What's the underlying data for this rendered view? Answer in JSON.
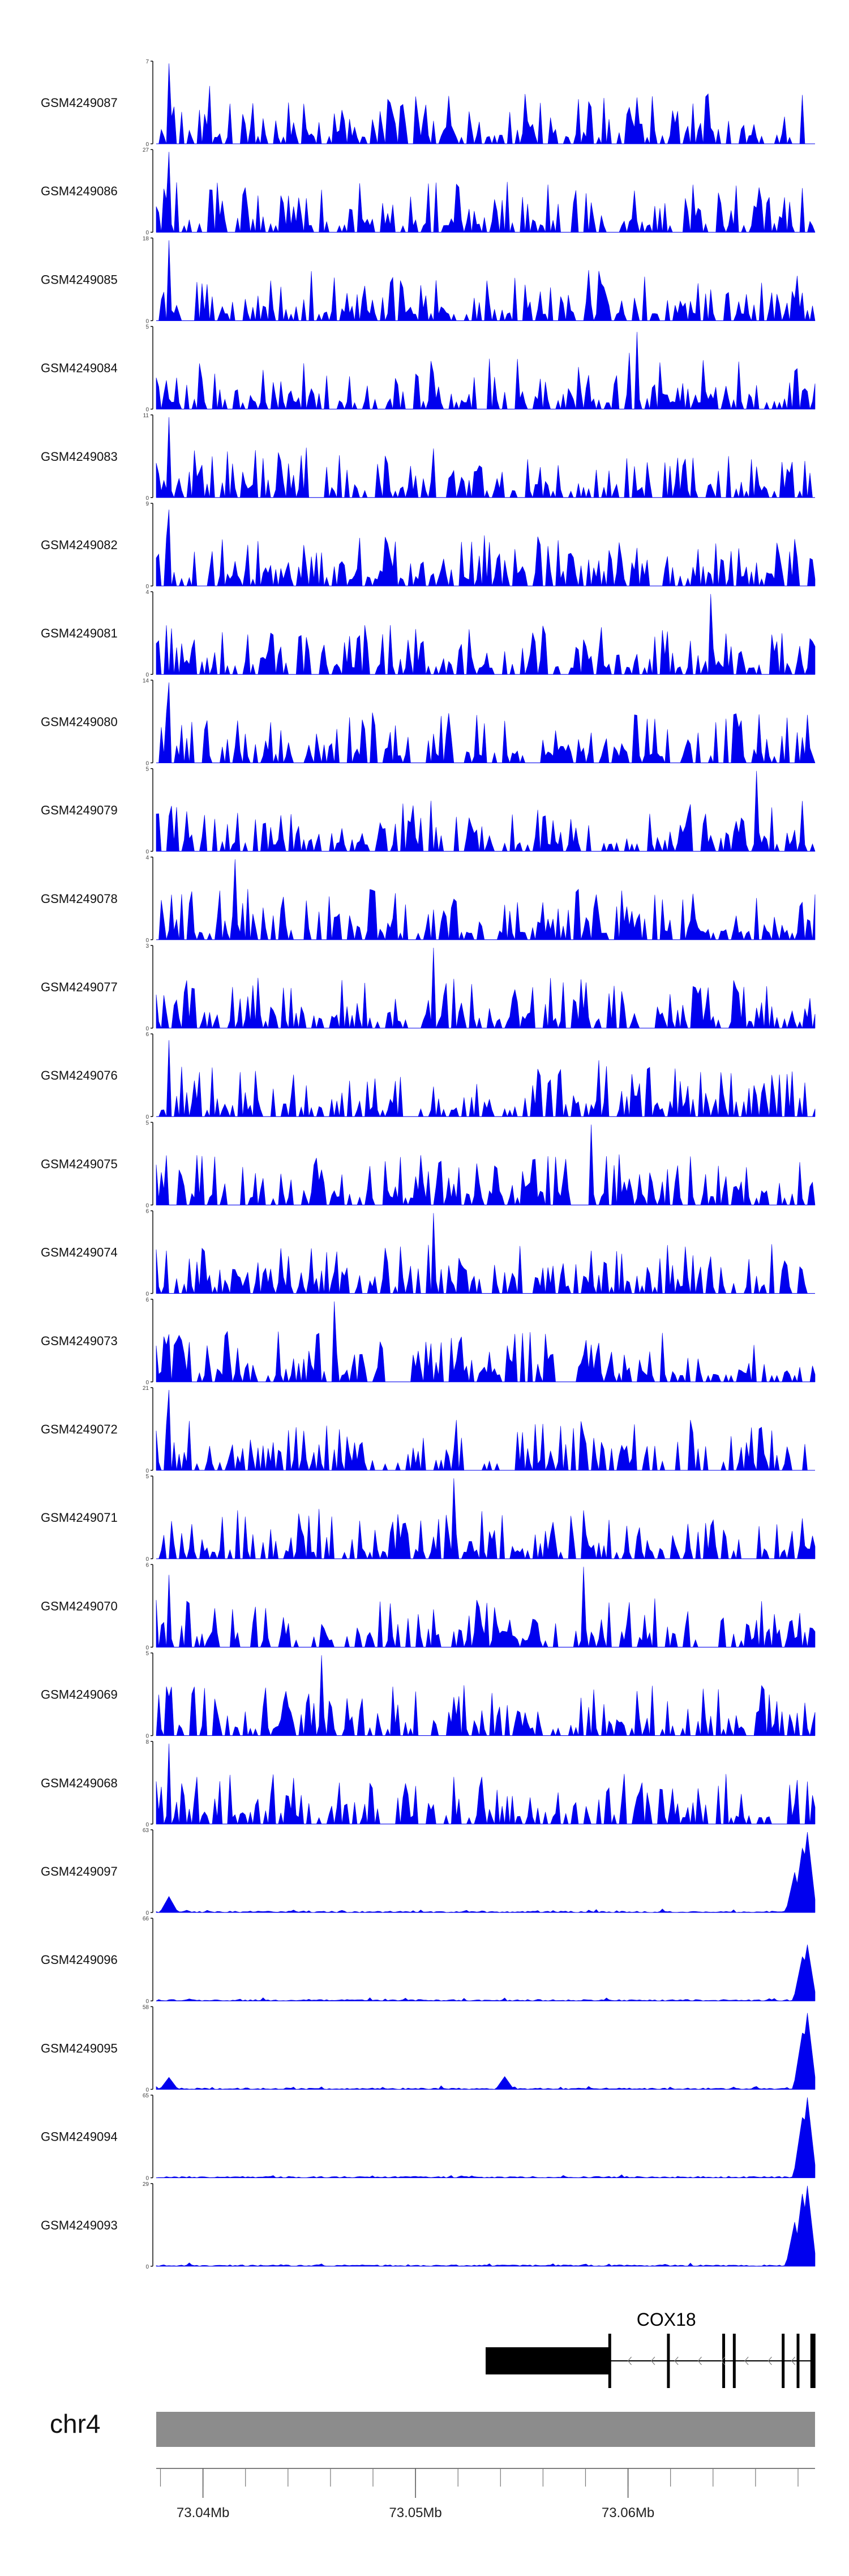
{
  "chart_data": {
    "type": "area",
    "colors": {
      "signal": "#0000ee",
      "axis": "#111111",
      "ideogram": "#8c8c8c",
      "gene": "#000000"
    },
    "tracks": [
      {
        "name": "GSM4249087",
        "ymax": 7,
        "peaks": [
          {
            "x": 2,
            "h": 1.0
          },
          {
            "x": 8,
            "h": 0.72
          }
        ]
      },
      {
        "name": "GSM4249086",
        "ymax": 27,
        "peaks": [
          {
            "x": 2,
            "h": 1.0
          },
          {
            "x": 3,
            "h": 0.62
          }
        ]
      },
      {
        "name": "GSM4249085",
        "ymax": 18,
        "peaks": [
          {
            "x": 2,
            "h": 1.0
          },
          {
            "x": 97,
            "h": 0.27
          }
        ]
      },
      {
        "name": "GSM4249084",
        "ymax": 5,
        "peaks": [
          {
            "x": 73,
            "h": 0.96
          },
          {
            "x": 72,
            "h": 0.7
          }
        ]
      },
      {
        "name": "GSM4249083",
        "ymax": 11,
        "peaks": [
          {
            "x": 2,
            "h": 1.0
          }
        ]
      },
      {
        "name": "GSM4249082",
        "ymax": 9,
        "peaks": [
          {
            "x": 2,
            "h": 0.95
          }
        ]
      },
      {
        "name": "GSM4249081",
        "ymax": 4,
        "peaks": [
          {
            "x": 84,
            "h": 1.0
          }
        ]
      },
      {
        "name": "GSM4249080",
        "ymax": 14,
        "peaks": [
          {
            "x": 2,
            "h": 1.0
          }
        ]
      },
      {
        "name": "GSM4249079",
        "ymax": 5,
        "peaks": [
          {
            "x": 91,
            "h": 1.0
          }
        ]
      },
      {
        "name": "GSM4249078",
        "ymax": 4,
        "peaks": [
          {
            "x": 12,
            "h": 1.0
          }
        ]
      },
      {
        "name": "GSM4249077",
        "ymax": 3,
        "peaks": [
          {
            "x": 42,
            "h": 1.0
          }
        ]
      },
      {
        "name": "GSM4249076",
        "ymax": 6,
        "peaks": [
          {
            "x": 2,
            "h": 0.95
          },
          {
            "x": 67,
            "h": 0.7
          }
        ]
      },
      {
        "name": "GSM4249075",
        "ymax": 5,
        "peaks": [
          {
            "x": 66,
            "h": 1.0
          }
        ]
      },
      {
        "name": "GSM4249074",
        "ymax": 6,
        "peaks": [
          {
            "x": 42,
            "h": 1.0
          }
        ]
      },
      {
        "name": "GSM4249073",
        "ymax": 6,
        "peaks": [
          {
            "x": 27,
            "h": 1.0
          }
        ]
      },
      {
        "name": "GSM4249072",
        "ymax": 21,
        "peaks": [
          {
            "x": 2,
            "h": 1.0
          }
        ]
      },
      {
        "name": "GSM4249071",
        "ymax": 5,
        "peaks": [
          {
            "x": 45,
            "h": 1.0
          }
        ]
      },
      {
        "name": "GSM4249070",
        "ymax": 6,
        "peaks": [
          {
            "x": 65,
            "h": 1.0
          },
          {
            "x": 2,
            "h": 0.9
          }
        ]
      },
      {
        "name": "GSM4249069",
        "ymax": 5,
        "peaks": [
          {
            "x": 25,
            "h": 1.0
          }
        ]
      },
      {
        "name": "GSM4249068",
        "ymax": 8,
        "peaks": [
          {
            "x": 2,
            "h": 1.0
          }
        ]
      },
      {
        "name": "GSM4249097",
        "ymax": 63,
        "peaks": [
          {
            "x": 2,
            "h": 0.2
          },
          {
            "x": 99,
            "h": 1.0
          },
          {
            "x": 98,
            "h": 0.8
          },
          {
            "x": 97,
            "h": 0.5
          }
        ]
      },
      {
        "name": "GSM4249096",
        "ymax": 66,
        "peaks": [
          {
            "x": 99,
            "h": 0.7
          },
          {
            "x": 98,
            "h": 0.55
          }
        ]
      },
      {
        "name": "GSM4249095",
        "ymax": 58,
        "peaks": [
          {
            "x": 2,
            "h": 0.15
          },
          {
            "x": 53,
            "h": 0.16
          },
          {
            "x": 99,
            "h": 0.95
          },
          {
            "x": 98,
            "h": 0.7
          }
        ]
      },
      {
        "name": "GSM4249094",
        "ymax": 65,
        "peaks": [
          {
            "x": 99,
            "h": 1.0
          },
          {
            "x": 98,
            "h": 0.75
          }
        ]
      },
      {
        "name": "GSM4249093",
        "ymax": 29,
        "peaks": [
          {
            "x": 99,
            "h": 1.0
          },
          {
            "x": 98,
            "h": 0.9
          },
          {
            "x": 97,
            "h": 0.55
          }
        ]
      }
    ],
    "gene": {
      "name": "COX18",
      "start": 73.0533,
      "end": 73.0688,
      "utr_block": [
        73.0533,
        73.0591
      ],
      "exons": [
        73.0619,
        73.0645,
        73.065,
        73.0673,
        73.068,
        73.0687
      ]
    },
    "chromosome": "chr4",
    "x_range": [
      73.0378,
      73.0688
    ],
    "x_ticks": [
      {
        "value": 73.04,
        "label": "73.04Mb"
      },
      {
        "value": 73.05,
        "label": "73.05Mb"
      },
      {
        "value": 73.06,
        "label": "73.06Mb"
      }
    ],
    "minor_tick_step": 0.002
  }
}
